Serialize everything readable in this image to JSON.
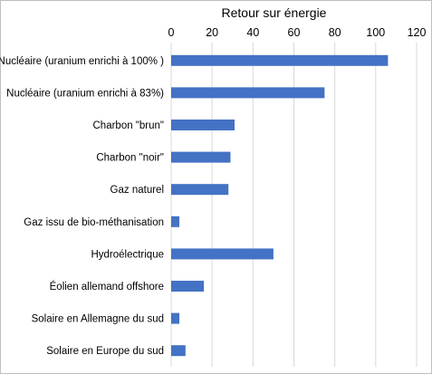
{
  "chart_data": {
    "type": "bar",
    "orientation": "horizontal",
    "title": "Retour sur énergie",
    "xlabel": "",
    "ylabel": "",
    "xlim": [
      0,
      120
    ],
    "x_ticks": [
      "0",
      "20",
      "40",
      "60",
      "80",
      "100",
      "120"
    ],
    "x_axis_position": "top",
    "grid": true,
    "legend": "none",
    "categories": [
      "Nucléaire (uranium enrichi à 100% )",
      "Nucléaire (uranium enrichi à 83%)",
      "Charbon \"brun\"",
      "Charbon \"noir\"",
      "Gaz naturel",
      "Gaz issu de bio-méthanisation",
      "Hydroélectrique",
      "Éolien allemand offshore",
      "Solaire en Allemagne du sud",
      "Solaire en Europe du sud"
    ],
    "values": [
      106,
      75,
      31,
      29,
      28,
      4,
      50,
      16,
      4,
      7
    ],
    "bar_color": "#4472c4"
  }
}
